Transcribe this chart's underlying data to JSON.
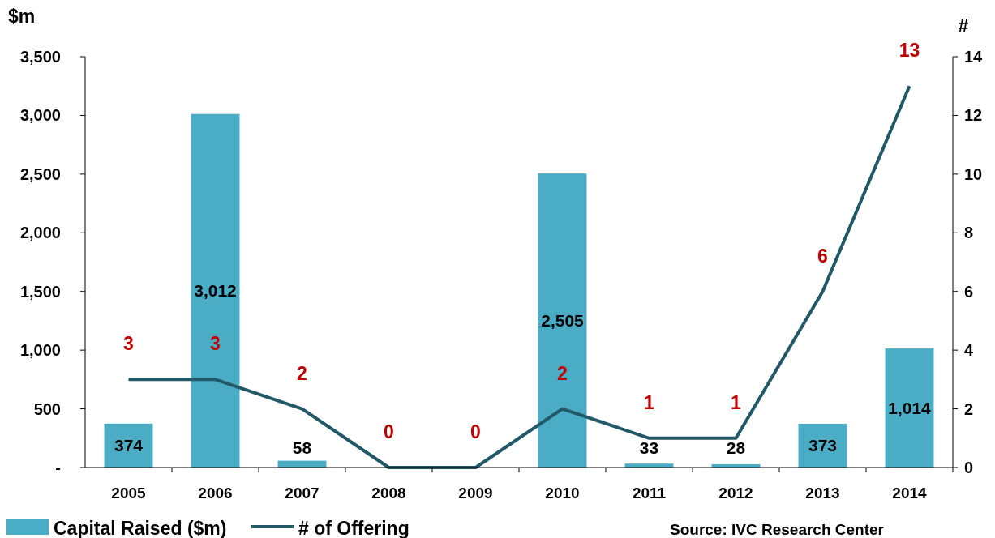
{
  "chart_data": {
    "type": "bar",
    "ylabel": "$m",
    "y2label": "#",
    "categories": [
      "2005",
      "2006",
      "2007",
      "2008",
      "2009",
      "2010",
      "2011",
      "2012",
      "2013",
      "2014"
    ],
    "series": [
      {
        "name": "Capital Raised ($m)",
        "color": "#4bacc6",
        "values": [
          374,
          3012,
          58,
          0,
          0,
          2505,
          33,
          28,
          373,
          1014
        ],
        "value_labels": [
          "374",
          "3,012",
          "58",
          null,
          null,
          "2,505",
          "33",
          "28",
          "373",
          "1,014"
        ]
      },
      {
        "name": "# of Offering",
        "type": "line",
        "axis": "y2",
        "color": "#215968",
        "values": [
          3,
          3,
          2,
          0,
          0,
          2,
          1,
          1,
          6,
          13
        ],
        "data_labels": true
      }
    ],
    "ylim": [
      0,
      3500
    ],
    "yticks": [
      {
        "value": 0,
        "label": "-"
      },
      500,
      {
        "value": 1000,
        "label": "1,000"
      },
      {
        "value": 1500,
        "label": "1,500"
      },
      {
        "value": 2000,
        "label": "2,000"
      },
      {
        "value": 2500,
        "label": "2,500"
      },
      {
        "value": 3000,
        "label": "3,000"
      },
      {
        "value": 3500,
        "label": "3,500"
      }
    ],
    "y2lim": [
      0,
      14
    ],
    "y2ticks": [
      0,
      2,
      4,
      6,
      8,
      10,
      12,
      14
    ],
    "legend": "bottom",
    "grid": false,
    "annotations": [
      "Source: IVC Research Center"
    ]
  }
}
